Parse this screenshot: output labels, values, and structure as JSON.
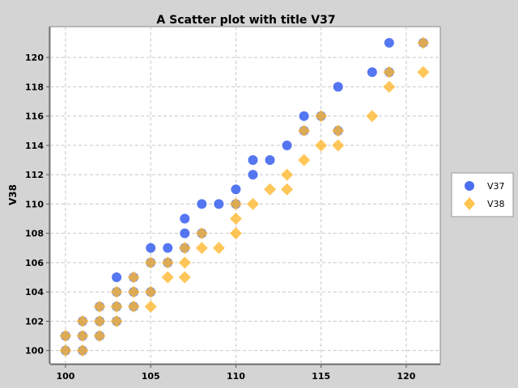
{
  "chart_data": {
    "type": "scatter",
    "title": "A Scatter plot with title V37",
    "xlabel": "",
    "ylabel": "V38",
    "xlim": [
      99.1,
      122.0
    ],
    "ylim": [
      99.1,
      122.1
    ],
    "x_ticks": [
      100,
      105,
      110,
      115,
      120
    ],
    "y_ticks": [
      100,
      102,
      104,
      106,
      108,
      110,
      112,
      114,
      116,
      118,
      120
    ],
    "grid": true,
    "legend_position": "right",
    "series": [
      {
        "name": "V37",
        "marker": "circle",
        "color": "#2a55ee",
        "points": [
          [
            100,
            100
          ],
          [
            100,
            101
          ],
          [
            101,
            100
          ],
          [
            101,
            101
          ],
          [
            101,
            102
          ],
          [
            102,
            101
          ],
          [
            102,
            102
          ],
          [
            102,
            103
          ],
          [
            103,
            102
          ],
          [
            103,
            103
          ],
          [
            103,
            104
          ],
          [
            103,
            105
          ],
          [
            104,
            103
          ],
          [
            104,
            104
          ],
          [
            104,
            105
          ],
          [
            105,
            104
          ],
          [
            105,
            106
          ],
          [
            105,
            107
          ],
          [
            106,
            106
          ],
          [
            106,
            107
          ],
          [
            107,
            107
          ],
          [
            107,
            108
          ],
          [
            107,
            109
          ],
          [
            108,
            108
          ],
          [
            108,
            110
          ],
          [
            109,
            110
          ],
          [
            110,
            110
          ],
          [
            110,
            111
          ],
          [
            111,
            112
          ],
          [
            111,
            113
          ],
          [
            112,
            113
          ],
          [
            113,
            114
          ],
          [
            114,
            115
          ],
          [
            114,
            116
          ],
          [
            115,
            116
          ],
          [
            116,
            115
          ],
          [
            116,
            118
          ],
          [
            118,
            119
          ],
          [
            119,
            119
          ],
          [
            119,
            121
          ],
          [
            121,
            121
          ]
        ]
      },
      {
        "name": "V38",
        "marker": "diamond",
        "color": "#ffb830",
        "points": [
          [
            100,
            100
          ],
          [
            100,
            101
          ],
          [
            101,
            100
          ],
          [
            101,
            101
          ],
          [
            101,
            102
          ],
          [
            102,
            101
          ],
          [
            102,
            102
          ],
          [
            102,
            103
          ],
          [
            103,
            102
          ],
          [
            103,
            103
          ],
          [
            103,
            104
          ],
          [
            104,
            103
          ],
          [
            104,
            104
          ],
          [
            104,
            105
          ],
          [
            105,
            103
          ],
          [
            105,
            104
          ],
          [
            105,
            106
          ],
          [
            106,
            105
          ],
          [
            106,
            106
          ],
          [
            107,
            105
          ],
          [
            107,
            106
          ],
          [
            107,
            107
          ],
          [
            108,
            107
          ],
          [
            108,
            108
          ],
          [
            109,
            107
          ],
          [
            110,
            108
          ],
          [
            110,
            109
          ],
          [
            110,
            110
          ],
          [
            111,
            110
          ],
          [
            112,
            111
          ],
          [
            113,
            111
          ],
          [
            113,
            112
          ],
          [
            114,
            113
          ],
          [
            114,
            115
          ],
          [
            115,
            114
          ],
          [
            115,
            116
          ],
          [
            116,
            114
          ],
          [
            116,
            115
          ],
          [
            118,
            116
          ],
          [
            119,
            118
          ],
          [
            119,
            119
          ],
          [
            121,
            119
          ],
          [
            121,
            121
          ]
        ]
      }
    ]
  }
}
